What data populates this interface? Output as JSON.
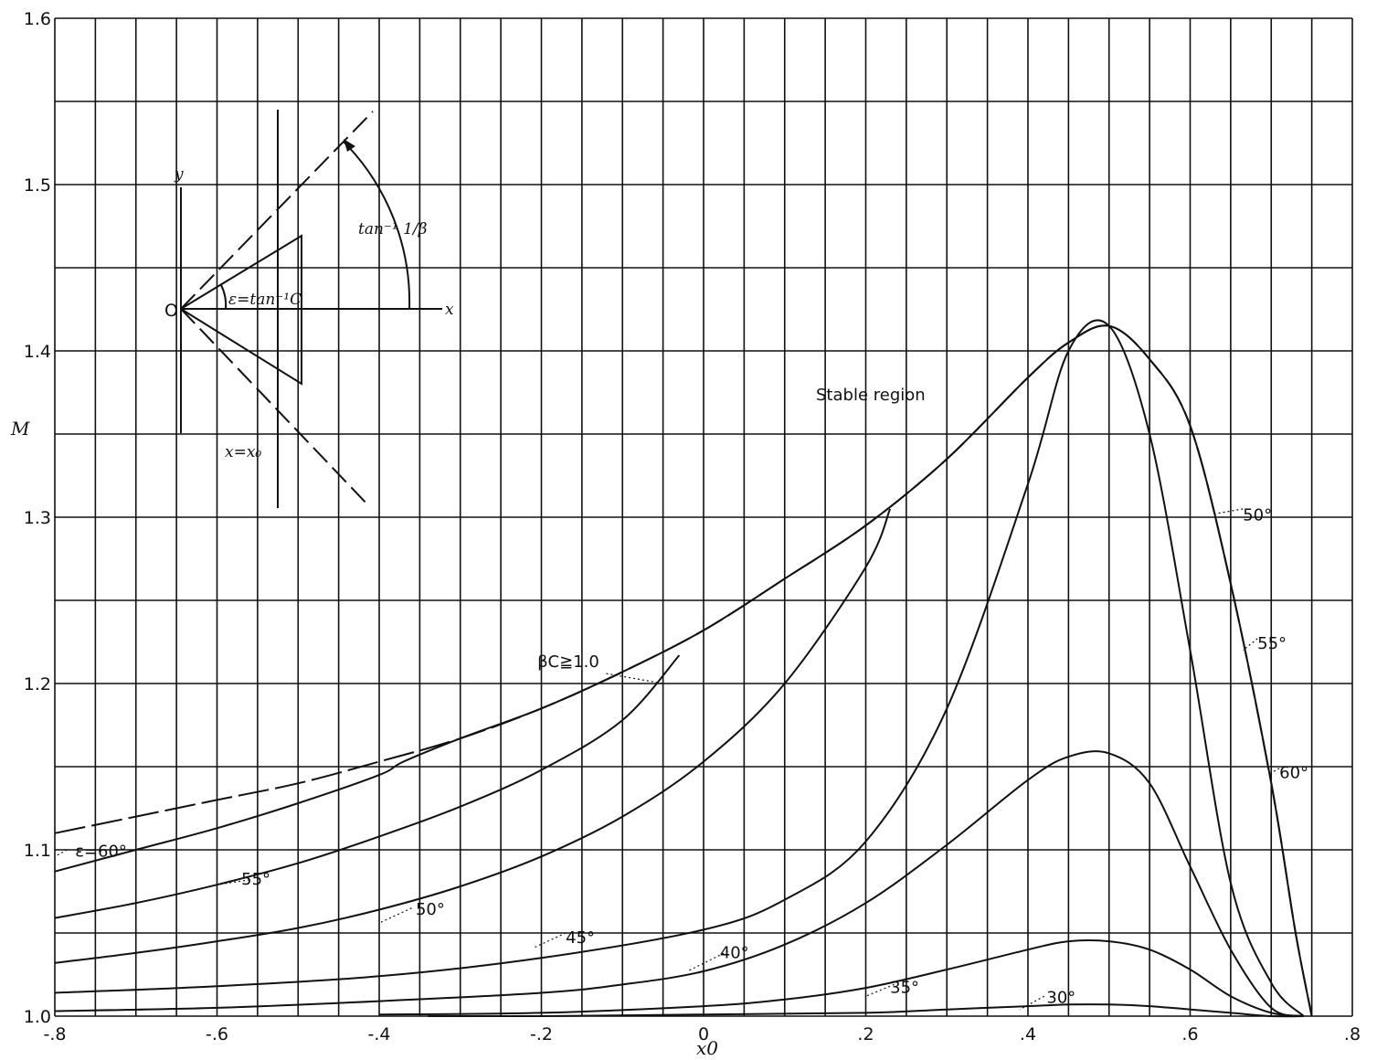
{
  "chart_data": {
    "type": "line",
    "xlabel": "x0",
    "ylabel": "M",
    "xlim": [
      -0.8,
      0.8
    ],
    "ylim": [
      1.0,
      1.6
    ],
    "grid": true,
    "x_ticks": [
      -0.8,
      -0.6,
      -0.4,
      -0.2,
      0,
      0.2,
      0.4,
      0.6,
      0.8
    ],
    "x_tick_labels": [
      "-.8",
      "-.6",
      "-.4",
      "-.2",
      "0",
      ".2",
      ".4",
      ".6",
      ".8"
    ],
    "y_ticks": [
      1.0,
      1.1,
      1.2,
      1.3,
      1.4,
      1.5,
      1.6
    ],
    "y_tick_labels": [
      "1.0",
      "1.1",
      "1.2",
      "1.3",
      "1.4",
      "1.5",
      "1.6"
    ],
    "series": [
      {
        "name": "βC≧1.0",
        "style": "dashed",
        "x": [
          -0.8,
          -0.7,
          -0.6,
          -0.5,
          -0.4,
          -0.3,
          -0.2,
          -0.1,
          0.0,
          0.1,
          0.2,
          0.3,
          0.4,
          0.45,
          0.5,
          0.55,
          0.6,
          0.65,
          0.7,
          0.73,
          0.75
        ],
        "y": [
          1.11,
          1.12,
          1.13,
          1.14,
          1.153,
          1.167,
          1.185,
          1.207,
          1.232,
          1.263,
          1.295,
          1.335,
          1.384,
          1.405,
          1.415,
          1.395,
          1.355,
          1.26,
          1.14,
          1.05,
          1.0
        ]
      },
      {
        "name": "ε=60°",
        "style": "solid",
        "x": [
          -0.8,
          -0.7,
          -0.6,
          -0.5,
          -0.4,
          -0.37,
          -0.3,
          -0.2,
          -0.1,
          0.0,
          0.1,
          0.2,
          0.3,
          0.4,
          0.45,
          0.5,
          0.55,
          0.6,
          0.65,
          0.7,
          0.73,
          0.75
        ],
        "y": [
          1.087,
          1.1,
          1.113,
          1.128,
          1.145,
          1.153,
          1.167,
          1.185,
          1.207,
          1.232,
          1.263,
          1.295,
          1.335,
          1.384,
          1.405,
          1.415,
          1.395,
          1.355,
          1.26,
          1.14,
          1.05,
          1.0
        ]
      },
      {
        "name": "55°",
        "style": "solid",
        "x": [
          -0.8,
          -0.7,
          -0.6,
          -0.5,
          -0.4,
          -0.3,
          -0.2,
          -0.1,
          -0.03
        ],
        "y": [
          1.059,
          1.068,
          1.079,
          1.092,
          1.108,
          1.126,
          1.148,
          1.178,
          1.217
        ]
      },
      {
        "name": "50°",
        "style": "solid",
        "x": [
          -0.8,
          -0.7,
          -0.6,
          -0.5,
          -0.4,
          -0.3,
          -0.2,
          -0.1,
          0.0,
          0.1,
          0.2,
          0.23
        ],
        "y": [
          1.032,
          1.038,
          1.045,
          1.053,
          1.064,
          1.078,
          1.096,
          1.12,
          1.153,
          1.2,
          1.27,
          1.305
        ]
      },
      {
        "name": "45°",
        "style": "solid",
        "x": [
          -0.8,
          -0.6,
          -0.4,
          -0.2,
          0.0,
          0.1,
          0.2,
          0.3,
          0.4,
          0.45,
          0.5,
          0.55,
          0.6,
          0.65,
          0.7,
          0.74
        ],
        "y": [
          1.014,
          1.018,
          1.024,
          1.035,
          1.052,
          1.07,
          1.105,
          1.185,
          1.32,
          1.4,
          1.415,
          1.35,
          1.22,
          1.08,
          1.02,
          1.0
        ]
      },
      {
        "name": "40°",
        "style": "solid",
        "x": [
          -0.8,
          -0.6,
          -0.4,
          -0.2,
          -0.1,
          0.0,
          0.1,
          0.2,
          0.3,
          0.4,
          0.45,
          0.5,
          0.55,
          0.6,
          0.65,
          0.7,
          0.74
        ],
        "y": [
          1.003,
          1.005,
          1.009,
          1.014,
          1.019,
          1.027,
          1.043,
          1.068,
          1.103,
          1.142,
          1.156,
          1.158,
          1.14,
          1.09,
          1.04,
          1.005,
          1.0
        ]
      },
      {
        "name": "35°",
        "style": "solid",
        "x": [
          -0.4,
          -0.2,
          0.0,
          0.1,
          0.2,
          0.3,
          0.4,
          0.45,
          0.5,
          0.55,
          0.6,
          0.65,
          0.7,
          0.74
        ],
        "y": [
          1.001,
          1.002,
          1.006,
          1.01,
          1.017,
          1.028,
          1.04,
          1.045,
          1.045,
          1.04,
          1.028,
          1.012,
          1.002,
          1.0
        ]
      },
      {
        "name": "30°",
        "style": "solid",
        "x": [
          -0.34,
          -0.2,
          0.0,
          0.2,
          0.3,
          0.4,
          0.45,
          0.5,
          0.55,
          0.6,
          0.65,
          0.7,
          0.74
        ],
        "y": [
          1.0,
          1.0,
          1.001,
          1.002,
          1.004,
          1.006,
          1.007,
          1.007,
          1.006,
          1.004,
          1.002,
          1.0,
          1.0
        ]
      }
    ],
    "labels": {
      "beta_c": "βC≧1.0",
      "eps60_left": "ε=60°",
      "l55_left": "55°",
      "l50_left": "50°",
      "l45": "45°",
      "l40": "40°",
      "l35": "35°",
      "l30": "30°",
      "l50_right": "50°",
      "l55_right": "55°",
      "l60_right": "60°",
      "stable": "Stable region"
    },
    "inset": {
      "y_axis": "y",
      "x_axis": "x",
      "origin": "O",
      "half_angle": "ε=tan⁻¹C",
      "mach_angle": "tan⁻¹ 1/β",
      "station": "x=x₀"
    }
  }
}
